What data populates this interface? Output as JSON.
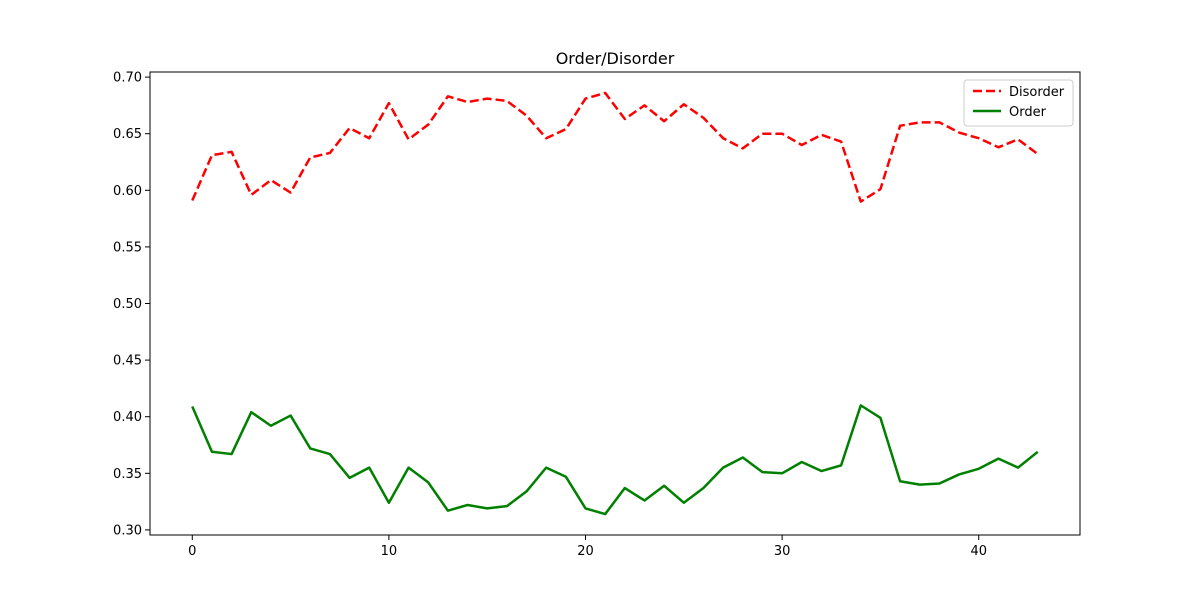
{
  "chart_data": {
    "type": "line",
    "title": "Order/Disorder",
    "xlabel": "",
    "ylabel": "",
    "xlim": [
      -2.15,
      45.15
    ],
    "ylim": [
      0.2955,
      0.7045
    ],
    "xticks": [
      0,
      10,
      20,
      30,
      40
    ],
    "yticks": [
      0.3,
      0.35,
      0.4,
      0.45,
      0.5,
      0.55,
      0.6,
      0.65,
      0.7
    ],
    "grid": false,
    "legend_position": "top-right",
    "x": [
      0,
      1,
      2,
      3,
      4,
      5,
      6,
      7,
      8,
      9,
      10,
      11,
      12,
      13,
      14,
      15,
      16,
      17,
      18,
      19,
      20,
      21,
      22,
      23,
      24,
      25,
      26,
      27,
      28,
      29,
      30,
      31,
      32,
      33,
      34,
      35,
      36,
      37,
      38,
      39,
      40,
      41,
      42,
      43
    ],
    "series": [
      {
        "name": "Disorder",
        "color": "#ff0000",
        "style": "dashed",
        "values": [
          0.591,
          0.631,
          0.634,
          0.596,
          0.609,
          0.598,
          0.629,
          0.633,
          0.655,
          0.646,
          0.677,
          0.645,
          0.658,
          0.683,
          0.678,
          0.681,
          0.679,
          0.666,
          0.646,
          0.654,
          0.681,
          0.686,
          0.663,
          0.675,
          0.661,
          0.676,
          0.664,
          0.646,
          0.637,
          0.65,
          0.65,
          0.64,
          0.649,
          0.643,
          0.59,
          0.601,
          0.657,
          0.66,
          0.66,
          0.651,
          0.646,
          0.638,
          0.645,
          0.632
        ]
      },
      {
        "name": "Order",
        "color": "#008000",
        "style": "solid",
        "values": [
          0.409,
          0.369,
          0.367,
          0.404,
          0.392,
          0.401,
          0.372,
          0.367,
          0.346,
          0.355,
          0.324,
          0.355,
          0.342,
          0.317,
          0.322,
          0.319,
          0.321,
          0.334,
          0.355,
          0.347,
          0.319,
          0.314,
          0.337,
          0.326,
          0.339,
          0.324,
          0.337,
          0.355,
          0.364,
          0.351,
          0.35,
          0.36,
          0.352,
          0.357,
          0.41,
          0.399,
          0.343,
          0.34,
          0.341,
          0.349,
          0.354,
          0.363,
          0.355,
          0.369
        ]
      }
    ]
  }
}
